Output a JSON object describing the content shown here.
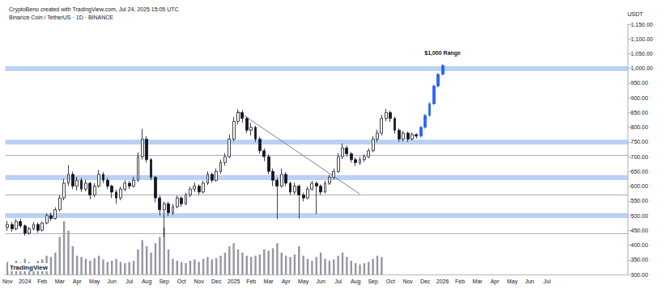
{
  "chart_data": {
    "type": "candlestick",
    "title": "CryptoBeno created with TradingView.com, Jul 24, 2025 15:05 UTC",
    "y_label": "USDT",
    "source": "TradingView",
    "annotations": [
      {
        "text": "$1,000 Range"
      }
    ],
    "grid": false,
    "categories": [
      "Nov",
      null,
      null,
      null,
      "2024",
      null,
      null,
      null,
      "Feb",
      null,
      null,
      null,
      "Mar",
      null,
      null,
      null,
      "Apr",
      null,
      null,
      null,
      "May",
      null,
      null,
      null,
      "Jun",
      null,
      null,
      null,
      "Jul",
      null,
      null,
      null,
      "Aug",
      null,
      null,
      null,
      "Sep",
      null,
      null,
      null,
      "Oct",
      null,
      null,
      null,
      "Nov",
      null,
      null,
      null,
      "Dec",
      null,
      null,
      null,
      "2025",
      null,
      null,
      null,
      "Feb",
      null,
      null,
      null,
      "Mar",
      null,
      null,
      null,
      "Apr",
      null,
      null,
      null,
      "May",
      null,
      null,
      null,
      "Jun",
      null,
      null,
      null,
      "Jul",
      null,
      null,
      null,
      "Aug",
      null,
      null,
      null,
      "Sep",
      null,
      null,
      null,
      "Oct",
      null,
      null,
      null,
      "Nov",
      null,
      null,
      null,
      "Dec",
      null,
      null,
      null,
      "2026",
      null,
      null,
      null,
      "Feb",
      null,
      null,
      null,
      "Mar",
      null,
      null,
      null,
      "Apr",
      null,
      null,
      null,
      "May",
      null,
      null,
      null,
      "Jun",
      null,
      null,
      null,
      "Jul",
      null,
      null,
      null,
      null,
      null,
      null,
      null,
      null,
      null,
      null,
      null,
      null,
      null,
      null,
      null,
      null,
      null,
      null
    ],
    "ylim": [
      300,
      1150
    ],
    "yticks": [
      {
        "value": 300,
        "label": "300.00"
      },
      {
        "value": 350,
        "label": "350.00"
      },
      {
        "value": 400,
        "label": "400.00"
      },
      {
        "value": 450,
        "label": "450.00"
      },
      {
        "value": 500,
        "label": "500.00"
      },
      {
        "value": 550,
        "label": "550.00"
      },
      {
        "value": 600,
        "label": "600.00"
      },
      {
        "value": 650,
        "label": "650.00"
      },
      {
        "value": 700,
        "label": "700.00"
      },
      {
        "value": 750,
        "label": "750.00"
      },
      {
        "value": 800,
        "label": "800.00"
      },
      {
        "value": 850,
        "label": "850.00"
      },
      {
        "value": 900,
        "label": "900.00"
      },
      {
        "value": 950,
        "label": "950.00"
      },
      {
        "value": 1000,
        "label": "1,000.00"
      },
      {
        "value": 1050,
        "label": "1,050.00"
      },
      {
        "value": 1100,
        "label": "1,100.00"
      },
      {
        "value": 1150,
        "label": "1,150.00"
      }
    ],
    "y2lim": [
      0,
      400
    ],
    "zones": [
      1000,
      750,
      630,
      500
    ],
    "levels": [
      705,
      570,
      440
    ],
    "trendline": [
      [
        53,
        854
      ],
      [
        81,
        573
      ]
    ],
    "series": [
      {
        "name": "Binance Coin / TetherUS · 1D · BINANCE",
        "type": "candlestick",
        "color": "#131722",
        "values": [
          [
            460,
            470,
            448,
            482
          ],
          [
            470,
            455,
            445,
            478
          ],
          [
            455,
            480,
            450,
            488
          ],
          [
            480,
            465,
            458,
            490
          ],
          [
            465,
            440,
            432,
            470
          ],
          [
            440,
            455,
            435,
            462
          ],
          [
            455,
            470,
            450,
            478
          ],
          [
            470,
            450,
            442,
            476
          ],
          [
            450,
            475,
            446,
            480
          ],
          [
            475,
            500,
            470,
            508
          ],
          [
            500,
            490,
            482,
            510
          ],
          [
            490,
            520,
            486,
            528
          ],
          [
            520,
            560,
            515,
            570
          ],
          [
            560,
            610,
            552,
            625
          ],
          [
            610,
            640,
            600,
            672
          ],
          [
            640,
            600,
            590,
            650
          ],
          [
            600,
            620,
            585,
            632
          ],
          [
            620,
            590,
            580,
            628
          ],
          [
            590,
            610,
            582,
            622
          ],
          [
            610,
            570,
            555,
            615
          ],
          [
            570,
            600,
            562,
            610
          ],
          [
            600,
            640,
            595,
            655
          ],
          [
            640,
            620,
            610,
            648
          ],
          [
            620,
            600,
            590,
            628
          ],
          [
            600,
            580,
            560,
            605
          ],
          [
            580,
            560,
            540,
            588
          ],
          [
            560,
            590,
            552,
            598
          ],
          [
            590,
            610,
            582,
            620
          ],
          [
            610,
            600,
            590,
            618
          ],
          [
            600,
            620,
            595,
            632
          ],
          [
            620,
            700,
            615,
            715
          ],
          [
            700,
            760,
            690,
            795
          ],
          [
            760,
            690,
            680,
            770
          ],
          [
            690,
            630,
            620,
            695
          ],
          [
            630,
            560,
            545,
            635
          ],
          [
            560,
            520,
            500,
            568
          ],
          [
            520,
            540,
            427,
            548
          ],
          [
            540,
            510,
            498,
            548
          ],
          [
            510,
            530,
            502,
            540
          ],
          [
            530,
            560,
            525,
            568
          ],
          [
            560,
            540,
            530,
            565
          ],
          [
            540,
            570,
            535,
            578
          ],
          [
            570,
            590,
            562,
            598
          ],
          [
            590,
            600,
            580,
            612
          ],
          [
            600,
            580,
            570,
            606
          ],
          [
            580,
            610,
            575,
            618
          ],
          [
            610,
            640,
            604,
            650
          ],
          [
            640,
            620,
            612,
            646
          ],
          [
            620,
            650,
            615,
            660
          ],
          [
            650,
            680,
            642,
            690
          ],
          [
            680,
            700,
            670,
            712
          ],
          [
            700,
            760,
            695,
            775
          ],
          [
            760,
            820,
            752,
            835
          ],
          [
            820,
            850,
            810,
            861
          ],
          [
            850,
            830,
            815,
            858
          ],
          [
            830,
            790,
            780,
            836
          ],
          [
            790,
            800,
            772,
            815
          ],
          [
            800,
            760,
            750,
            805
          ],
          [
            760,
            720,
            710,
            768
          ],
          [
            720,
            700,
            685,
            728
          ],
          [
            700,
            650,
            640,
            708
          ],
          [
            650,
            620,
            600,
            660
          ],
          [
            620,
            600,
            488,
            628
          ],
          [
            600,
            640,
            595,
            660
          ],
          [
            640,
            610,
            600,
            648
          ],
          [
            610,
            580,
            570,
            615
          ],
          [
            580,
            600,
            572,
            612
          ],
          [
            600,
            570,
            490,
            606
          ],
          [
            570,
            560,
            548,
            578
          ],
          [
            560,
            590,
            555,
            598
          ],
          [
            590,
            610,
            585,
            618
          ],
          [
            610,
            600,
            505,
            616
          ],
          [
            600,
            580,
            570,
            606
          ],
          [
            580,
            610,
            576,
            618
          ],
          [
            610,
            630,
            604,
            638
          ],
          [
            630,
            650,
            622,
            660
          ],
          [
            650,
            700,
            645,
            712
          ],
          [
            700,
            730,
            692,
            745
          ],
          [
            730,
            710,
            700,
            738
          ],
          [
            710,
            690,
            680,
            716
          ],
          [
            690,
            680,
            668,
            698
          ],
          [
            680,
            690,
            672,
            700
          ],
          [
            690,
            700,
            682,
            708
          ],
          [
            700,
            720,
            694,
            728
          ],
          [
            720,
            760,
            715,
            770
          ],
          [
            760,
            780,
            750,
            792
          ],
          [
            780,
            830,
            772,
            842
          ],
          [
            830,
            850,
            820,
            862
          ],
          [
            850,
            830,
            818,
            856
          ],
          [
            830,
            790,
            778,
            836
          ],
          [
            790,
            760,
            750,
            796
          ],
          [
            760,
            780,
            752,
            788
          ],
          [
            780,
            760,
            750,
            786
          ],
          [
            760,
            775,
            755,
            782
          ],
          [
            775,
            770,
            762,
            780
          ],
          null,
          null,
          null,
          null,
          null,
          null,
          null,
          null,
          null,
          null,
          null,
          null,
          null,
          null,
          null,
          null,
          null,
          null,
          null,
          null,
          null,
          null,
          null,
          null,
          null,
          null,
          null,
          null,
          null,
          null,
          null,
          null,
          null,
          null,
          null,
          null,
          null,
          null,
          null,
          null,
          null,
          null,
          null,
          null,
          null,
          null,
          null,
          null
        ]
      },
      {
        "type": "candlestick",
        "color": "#2962ff",
        "values": [
          null,
          null,
          null,
          null,
          null,
          null,
          null,
          null,
          null,
          null,
          null,
          null,
          null,
          null,
          null,
          null,
          null,
          null,
          null,
          null,
          null,
          null,
          null,
          null,
          null,
          null,
          null,
          null,
          null,
          null,
          null,
          null,
          null,
          null,
          null,
          null,
          null,
          null,
          null,
          null,
          null,
          null,
          null,
          null,
          null,
          null,
          null,
          null,
          null,
          null,
          null,
          null,
          null,
          null,
          null,
          null,
          null,
          null,
          null,
          null,
          null,
          null,
          null,
          null,
          null,
          null,
          null,
          null,
          null,
          null,
          null,
          null,
          null,
          null,
          null,
          null,
          null,
          null,
          null,
          null,
          null,
          null,
          null,
          null,
          null,
          null,
          null,
          null,
          null,
          null,
          null,
          null,
          null,
          null,
          null,
          [
            770,
            800,
            765,
            805
          ],
          [
            800,
            840,
            795,
            845
          ],
          [
            840,
            880,
            835,
            885
          ],
          [
            880,
            940,
            875,
            945
          ],
          [
            940,
            980,
            935,
            985
          ],
          [
            980,
            1010,
            975,
            1015
          ],
          null,
          null,
          null,
          null,
          null,
          null,
          null,
          null,
          null,
          null,
          null,
          null,
          null,
          null,
          null,
          null,
          null,
          null,
          null,
          null,
          null,
          null,
          null,
          null,
          null,
          null,
          null,
          null,
          null,
          null,
          null,
          null,
          null,
          null,
          null,
          null,
          null,
          null,
          null,
          null,
          null,
          null
        ]
      },
      {
        "type": "bar",
        "axis": "y2",
        "color": "#9598a1",
        "values": [
          20,
          18,
          22,
          19,
          25,
          20,
          18,
          22,
          24,
          30,
          28,
          35,
          60,
          85,
          70,
          45,
          30,
          28,
          25,
          22,
          26,
          30,
          24,
          20,
          22,
          25,
          20,
          18,
          20,
          22,
          40,
          55,
          45,
          35,
          50,
          60,
          75,
          40,
          25,
          22,
          20,
          18,
          22,
          24,
          20,
          25,
          28,
          24,
          26,
          30,
          35,
          45,
          50,
          40,
          35,
          30,
          28,
          30,
          32,
          40,
          38,
          42,
          50,
          35,
          30,
          28,
          32,
          45,
          30,
          25,
          22,
          28,
          35,
          25,
          22,
          24,
          30,
          35,
          28,
          22,
          18,
          16,
          18,
          20,
          25,
          30,
          28,
          null,
          null,
          null,
          null,
          null,
          null,
          null,
          null,
          null,
          null,
          null,
          null,
          null,
          null,
          null,
          null,
          null,
          null,
          null,
          null,
          null,
          null,
          null,
          null,
          null,
          null,
          null,
          null,
          null,
          null,
          null,
          null,
          null,
          null,
          null,
          null,
          null,
          null,
          null,
          null,
          null,
          null,
          null,
          null,
          null,
          null,
          null,
          null,
          null,
          null,
          null,
          null,
          null,
          null,
          null,
          null
        ]
      }
    ]
  }
}
